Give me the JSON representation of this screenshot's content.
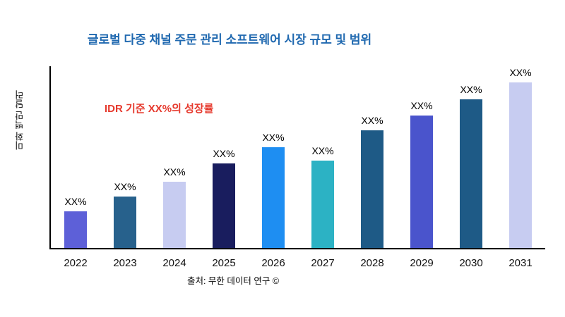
{
  "page": {
    "annotation": "IDR 기준 XX%의 성장률",
    "source": "출처: 무한 데이터 연구 ©"
  },
  "colors": {
    "title": "#2069b0",
    "annotation": "#e63a2e",
    "axis": "#000000"
  },
  "chart_data": {
    "type": "bar",
    "title": "글로벌 다중 채널 주문 관리 소프트웨어 시장 규모 및 범위",
    "xlabel": "",
    "ylabel": "미화 백만 달러",
    "categories": [
      "2022",
      "2023",
      "2024",
      "2025",
      "2026",
      "2027",
      "2028",
      "2029",
      "2030",
      "2031"
    ],
    "values": [
      22,
      31,
      40,
      51,
      61,
      53,
      71,
      80,
      90,
      100
    ],
    "bar_labels": [
      "XX%",
      "XX%",
      "XX%",
      "XX%",
      "XX%",
      "XX%",
      "XX%",
      "XX%",
      "XX%",
      "XX%"
    ],
    "bar_colors": [
      "#5d60d8",
      "#27618c",
      "#c7ccf1",
      "#191d5e",
      "#1e8ef2",
      "#2cb2c4",
      "#1e5a86",
      "#4a54cc",
      "#1e5a86",
      "#c7ccf1"
    ],
    "ylim": [
      0,
      110
    ],
    "grid": false,
    "legend": null
  }
}
